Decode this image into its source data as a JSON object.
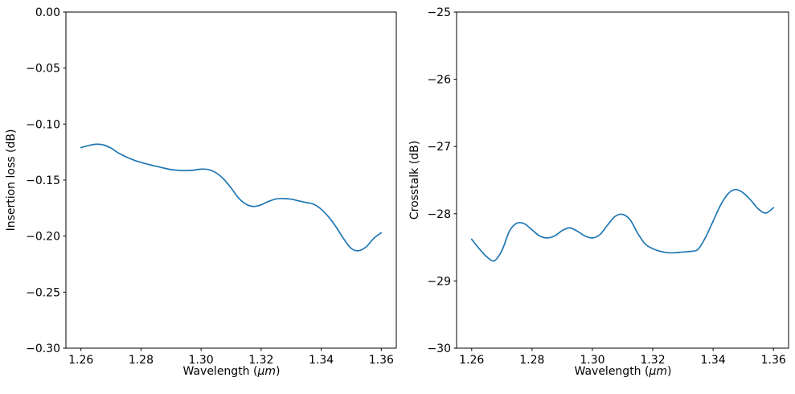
{
  "figure": {
    "background": "#ffffff",
    "axis_color": "#000000",
    "tick_label_color": "#000000",
    "line_color": "#1f77b4"
  },
  "chart_data": [
    {
      "type": "line",
      "panel": "left",
      "title": "",
      "xlabel": "Wavelength (μm)",
      "xlabel_parts": {
        "prefix": "Wavelength (",
        "unit": "μm",
        "suffix": ")"
      },
      "ylabel": "Insertion loss (dB)",
      "xlim": [
        1.255,
        1.365
      ],
      "ylim": [
        -0.3,
        0.0
      ],
      "grid": false,
      "legend": null,
      "xticks": {
        "values": [
          1.26,
          1.28,
          1.3,
          1.32,
          1.34,
          1.36
        ],
        "labels": [
          "1.26",
          "1.28",
          "1.30",
          "1.32",
          "1.34",
          "1.36"
        ]
      },
      "yticks": {
        "values": [
          0.0,
          -0.05,
          -0.1,
          -0.15,
          -0.2,
          -0.25,
          -0.3
        ],
        "labels": [
          "0.00",
          "−0.05",
          "−0.10",
          "−0.15",
          "−0.20",
          "−0.25",
          "−0.30"
        ]
      },
      "series": [
        {
          "name": "insertion-loss",
          "color": "#1f77b4",
          "x": [
            1.26,
            1.2625,
            1.265,
            1.2675,
            1.27,
            1.2725,
            1.275,
            1.2775,
            1.28,
            1.2825,
            1.285,
            1.2875,
            1.29,
            1.2925,
            1.295,
            1.2975,
            1.3,
            1.3025,
            1.305,
            1.3075,
            1.31,
            1.3125,
            1.315,
            1.3175,
            1.32,
            1.3225,
            1.325,
            1.3275,
            1.33,
            1.3325,
            1.335,
            1.3375,
            1.34,
            1.3425,
            1.345,
            1.3475,
            1.35,
            1.3525,
            1.355,
            1.3575,
            1.36
          ],
          "y": [
            -0.121,
            -0.1192,
            -0.118,
            -0.1186,
            -0.1214,
            -0.1258,
            -0.1292,
            -0.132,
            -0.1342,
            -0.136,
            -0.1376,
            -0.1392,
            -0.1406,
            -0.1413,
            -0.1415,
            -0.1411,
            -0.1402,
            -0.1406,
            -0.1435,
            -0.149,
            -0.157,
            -0.166,
            -0.1715,
            -0.1735,
            -0.172,
            -0.169,
            -0.1668,
            -0.1665,
            -0.167,
            -0.1685,
            -0.17,
            -0.1715,
            -0.176,
            -0.183,
            -0.192,
            -0.2025,
            -0.211,
            -0.213,
            -0.2095,
            -0.202,
            -0.197
          ]
        }
      ]
    },
    {
      "type": "line",
      "panel": "right",
      "title": "",
      "xlabel": "Wavelength (μm)",
      "xlabel_parts": {
        "prefix": "Wavelength (",
        "unit": "μm",
        "suffix": ")"
      },
      "ylabel": "Crosstalk (dB)",
      "xlim": [
        1.255,
        1.365
      ],
      "ylim": [
        -30,
        -25
      ],
      "grid": false,
      "legend": null,
      "xticks": {
        "values": [
          1.26,
          1.28,
          1.3,
          1.32,
          1.34,
          1.36
        ],
        "labels": [
          "1.26",
          "1.28",
          "1.30",
          "1.32",
          "1.34",
          "1.36"
        ]
      },
      "yticks": {
        "values": [
          -25,
          -26,
          -27,
          -28,
          -29,
          -30
        ],
        "labels": [
          "−25",
          "−26",
          "−27",
          "−28",
          "−29",
          "−30"
        ]
      },
      "series": [
        {
          "name": "crosstalk",
          "color": "#1f77b4",
          "x": [
            1.26,
            1.2625,
            1.265,
            1.2675,
            1.27,
            1.2725,
            1.275,
            1.2775,
            1.28,
            1.2825,
            1.285,
            1.2875,
            1.29,
            1.2925,
            1.295,
            1.2975,
            1.3,
            1.3025,
            1.305,
            1.3075,
            1.31,
            1.3125,
            1.315,
            1.3175,
            1.32,
            1.3225,
            1.325,
            1.3275,
            1.33,
            1.3325,
            1.335,
            1.3375,
            1.34,
            1.3425,
            1.345,
            1.3475,
            1.35,
            1.3525,
            1.355,
            1.3575,
            1.36
          ],
          "y": [
            -28.38,
            -28.52,
            -28.64,
            -28.7,
            -28.55,
            -28.26,
            -28.14,
            -28.15,
            -28.24,
            -28.33,
            -28.36,
            -28.33,
            -28.25,
            -28.21,
            -28.26,
            -28.33,
            -28.36,
            -28.31,
            -28.17,
            -28.04,
            -28.01,
            -28.09,
            -28.29,
            -28.45,
            -28.52,
            -28.56,
            -28.58,
            -28.58,
            -28.57,
            -28.56,
            -28.53,
            -28.35,
            -28.11,
            -27.87,
            -27.7,
            -27.64,
            -27.69,
            -27.8,
            -27.93,
            -27.99,
            -27.91
          ]
        }
      ]
    }
  ]
}
